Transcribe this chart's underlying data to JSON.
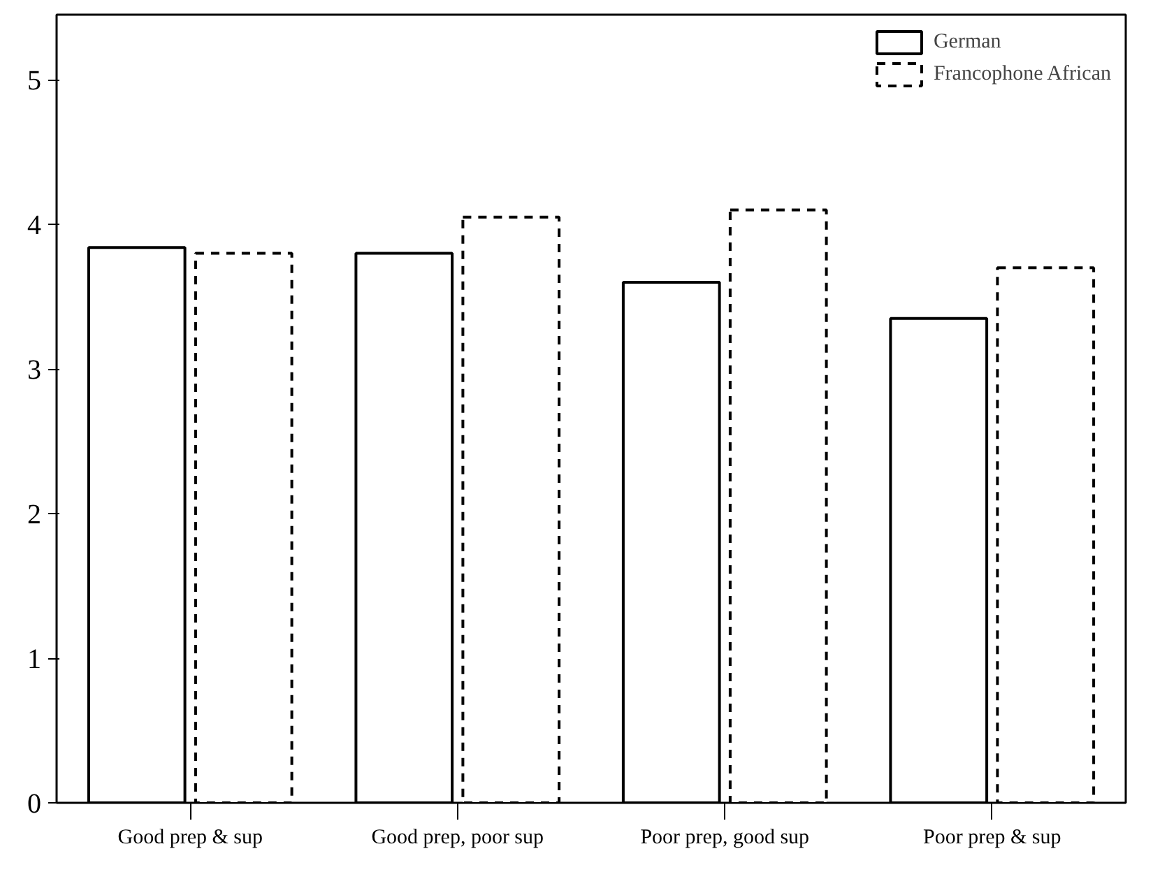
{
  "chart_data": {
    "type": "bar",
    "categories": [
      "Good prep & sup",
      "Good prep, poor sup",
      "Poor prep, good sup",
      "Poor prep & sup"
    ],
    "series": [
      {
        "name": "German",
        "color": "#000000",
        "line_style": "solid",
        "values": [
          3.84,
          3.8,
          3.6,
          3.35
        ]
      },
      {
        "name": "Francophone African",
        "color": "#000000",
        "line_style": "dashed",
        "values": [
          3.8,
          4.05,
          4.1,
          3.7
        ]
      }
    ],
    "ylim": [
      0,
      5.45
    ],
    "yticks": [
      0,
      1,
      2,
      3,
      4,
      5
    ],
    "grid": false,
    "legend": "top right"
  }
}
